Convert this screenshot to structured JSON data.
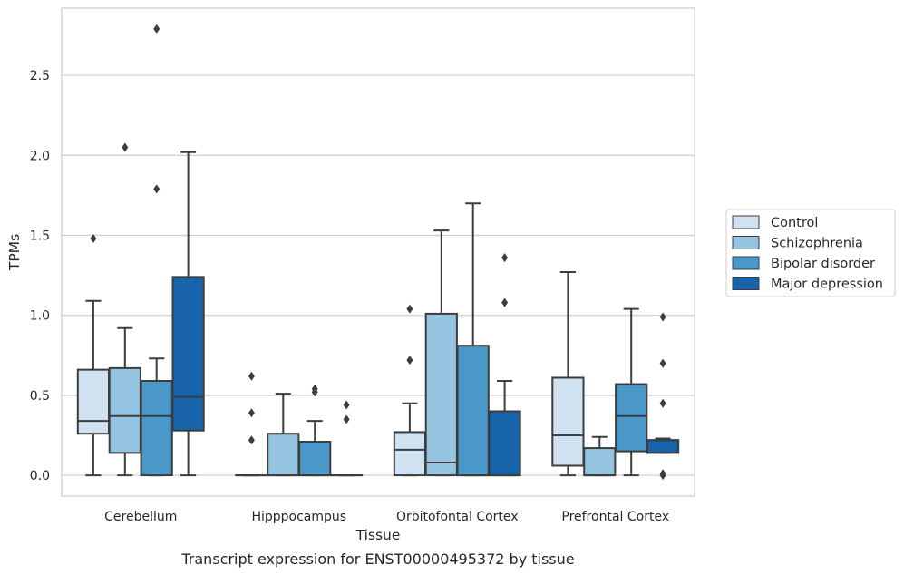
{
  "chart_data": {
    "type": "box",
    "xlabel": "Tissue",
    "ylabel": "TPMs",
    "caption": "Transcript expression for ENST00000495372 by tissue",
    "ylim": [
      -0.13,
      2.92
    ],
    "yticks": [
      "0.0",
      "0.5",
      "1.0",
      "1.5",
      "2.0",
      "2.5"
    ],
    "ytick_values": [
      0.0,
      0.5,
      1.0,
      1.5,
      2.0,
      2.5
    ],
    "grid": "horizontal",
    "legend_position": "right",
    "categories": [
      "Cerebellum",
      "Hipppocampus",
      "Orbitofontal Cortex",
      "Prefrontal Cortex"
    ],
    "series": [
      {
        "name": "Control",
        "color": "#d0e1f2",
        "boxes": [
          {
            "whislo": 0.0,
            "q1": 0.26,
            "med": 0.34,
            "q3": 0.66,
            "whishi": 1.09,
            "fliers": [
              1.48
            ]
          },
          {
            "whislo": 0.0,
            "q1": 0.0,
            "med": 0.0,
            "q3": 0.0,
            "whishi": 0.0,
            "fliers": [
              0.22,
              0.39,
              0.62
            ]
          },
          {
            "whislo": 0.0,
            "q1": 0.0,
            "med": 0.16,
            "q3": 0.27,
            "whishi": 0.45,
            "fliers": [
              0.72,
              1.04
            ]
          },
          {
            "whislo": 0.0,
            "q1": 0.06,
            "med": 0.25,
            "q3": 0.61,
            "whishi": 1.27,
            "fliers": []
          }
        ]
      },
      {
        "name": "Schizophrenia",
        "color": "#94c4df",
        "boxes": [
          {
            "whislo": 0.0,
            "q1": 0.14,
            "med": 0.37,
            "q3": 0.67,
            "whishi": 0.92,
            "fliers": [
              2.05
            ]
          },
          {
            "whislo": 0.0,
            "q1": 0.0,
            "med": 0.0,
            "q3": 0.26,
            "whishi": 0.51,
            "fliers": []
          },
          {
            "whislo": 0.0,
            "q1": 0.0,
            "med": 0.08,
            "q3": 1.01,
            "whishi": 1.53,
            "fliers": []
          },
          {
            "whislo": 0.0,
            "q1": 0.0,
            "med": 0.0,
            "q3": 0.17,
            "whishi": 0.24,
            "fliers": []
          }
        ]
      },
      {
        "name": "Bipolar disorder",
        "color": "#4a98c9",
        "boxes": [
          {
            "whislo": 0.0,
            "q1": 0.0,
            "med": 0.37,
            "q3": 0.59,
            "whishi": 0.73,
            "fliers": [
              1.79,
              2.79
            ]
          },
          {
            "whislo": 0.0,
            "q1": 0.0,
            "med": 0.0,
            "q3": 0.21,
            "whishi": 0.34,
            "fliers": [
              0.52,
              0.54
            ]
          },
          {
            "whislo": 0.0,
            "q1": 0.0,
            "med": 0.0,
            "q3": 0.81,
            "whishi": 1.7,
            "fliers": []
          },
          {
            "whislo": 0.0,
            "q1": 0.15,
            "med": 0.37,
            "q3": 0.57,
            "whishi": 1.04,
            "fliers": []
          }
        ]
      },
      {
        "name": "Major depression",
        "color": "#1764ab",
        "boxes": [
          {
            "whislo": 0.0,
            "q1": 0.28,
            "med": 0.49,
            "q3": 1.24,
            "whishi": 2.02,
            "fliers": []
          },
          {
            "whislo": 0.0,
            "q1": 0.0,
            "med": 0.0,
            "q3": 0.0,
            "whishi": 0.0,
            "fliers": [
              0.35,
              0.44
            ]
          },
          {
            "whislo": 0.0,
            "q1": 0.0,
            "med": 0.0,
            "q3": 0.4,
            "whishi": 0.59,
            "fliers": [
              1.08,
              1.36
            ]
          },
          {
            "whislo": 0.14,
            "q1": 0.14,
            "med": 0.22,
            "q3": 0.22,
            "whishi": 0.23,
            "fliers": [
              0.0,
              0.01,
              0.45,
              0.7,
              0.99
            ]
          }
        ]
      }
    ]
  }
}
